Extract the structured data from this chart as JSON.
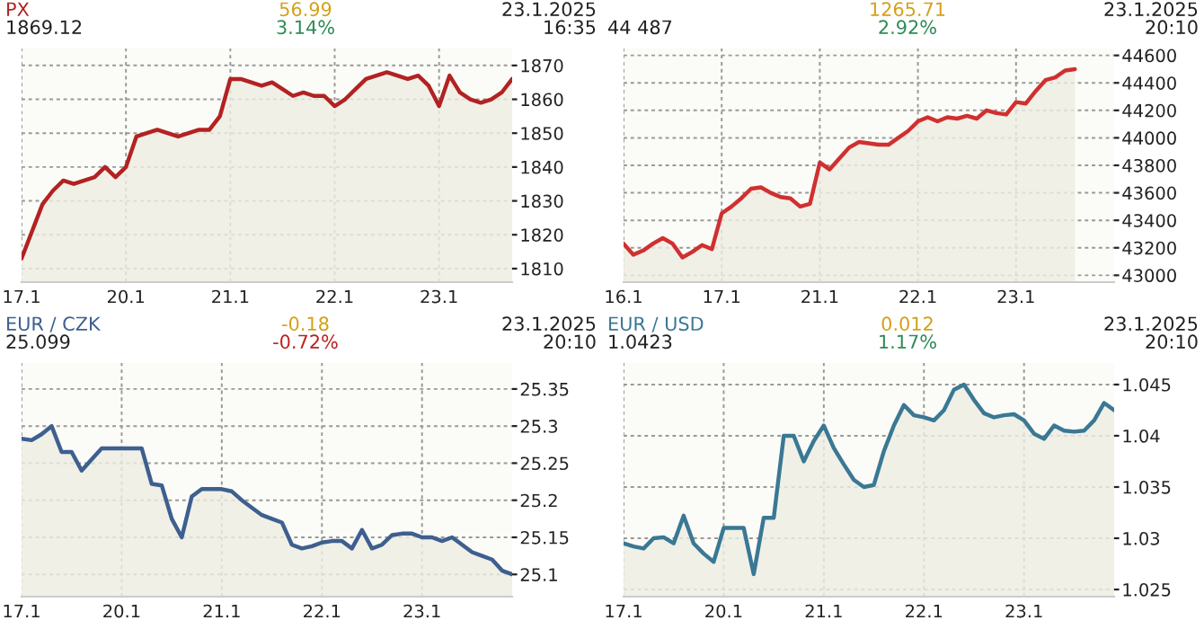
{
  "chart_data": [
    {
      "type": "area",
      "title": "PX",
      "subtitle": "1869.12",
      "annotations": [
        "56.99",
        "3.14%",
        "23.1.2025",
        "16:35"
      ],
      "categories": [
        "17.1",
        null,
        null,
        null,
        null,
        null,
        null,
        null,
        null,
        null,
        "20.1",
        null,
        null,
        null,
        null,
        null,
        null,
        null,
        null,
        null,
        "21.1",
        null,
        null,
        null,
        null,
        null,
        null,
        null,
        null,
        null,
        "22.1",
        null,
        null,
        null,
        null,
        null,
        null,
        null,
        null,
        null,
        "23.1",
        null,
        null,
        null,
        null,
        null,
        null,
        null
      ],
      "series": [
        {
          "color": "#b22222",
          "values": [
            1813,
            1821,
            1829,
            1833,
            1836,
            1835,
            1836,
            1837,
            1840,
            1837,
            1840,
            1849,
            1850,
            1851,
            1850,
            1849,
            1850,
            1851,
            1851,
            1855,
            1866,
            1866,
            1865,
            1864,
            1865,
            1863,
            1861,
            1862,
            1861,
            1861,
            1858,
            1860,
            1863,
            1866,
            1867,
            1868,
            1867,
            1866,
            1867,
            1864,
            1858,
            1867,
            1862,
            1860,
            1859,
            1860,
            1862,
            1866
          ]
        }
      ],
      "ylim": [
        1806,
        1875
      ],
      "yticks": [
        1810,
        1820,
        1830,
        1840,
        1850,
        1860,
        1870
      ],
      "grid": true
    },
    {
      "type": "area",
      "subtitle": "44 487",
      "annotations": [
        "1265.71",
        "2.92%",
        "23.1.2025",
        "20:10"
      ],
      "categories": [
        "16.1",
        null,
        null,
        null,
        null,
        null,
        null,
        null,
        null,
        null,
        "17.1",
        null,
        null,
        null,
        null,
        null,
        null,
        null,
        null,
        null,
        "21.1",
        null,
        null,
        null,
        null,
        null,
        null,
        null,
        null,
        null,
        "22.1",
        null,
        null,
        null,
        null,
        null,
        null,
        null,
        null,
        null,
        "23.1",
        null,
        null,
        null,
        null,
        null,
        null,
        null,
        null,
        null,
        null
      ],
      "series": [
        {
          "color": "#d03030",
          "values": [
            43230,
            43150,
            43180,
            43230,
            43270,
            43230,
            43130,
            43170,
            43220,
            43190,
            43450,
            43500,
            43560,
            43630,
            43640,
            43600,
            43570,
            43560,
            43500,
            43520,
            43820,
            43770,
            43850,
            43930,
            43970,
            43960,
            43950,
            43950,
            44000,
            44050,
            44120,
            44150,
            44120,
            44150,
            44140,
            44160,
            44140,
            44200,
            44180,
            44170,
            44260,
            44250,
            44340,
            44420,
            44440,
            44490,
            44500,
            null,
            null,
            null,
            null
          ]
        }
      ],
      "ylim": [
        42950,
        44650
      ],
      "yticks": [
        43000,
        43200,
        43400,
        43600,
        43800,
        44000,
        44200,
        44400,
        44600
      ],
      "grid": true
    },
    {
      "type": "area",
      "title": "EUR / CZK",
      "subtitle": "25.099",
      "annotations": [
        "-0.18",
        "-0.72%",
        "23.1.2025",
        "20:10"
      ],
      "categories": [
        "17.1",
        null,
        null,
        null,
        null,
        null,
        null,
        null,
        null,
        null,
        "20.1",
        null,
        null,
        null,
        null,
        null,
        null,
        null,
        null,
        null,
        "21.1",
        null,
        null,
        null,
        null,
        null,
        null,
        null,
        null,
        null,
        "22.1",
        null,
        null,
        null,
        null,
        null,
        null,
        null,
        null,
        null,
        "23.1",
        null,
        null,
        null,
        null,
        null,
        null,
        null,
        null,
        null
      ],
      "series": [
        {
          "color": "#3e5f8f",
          "values": [
            25.283,
            25.281,
            25.289,
            25.3,
            25.265,
            25.265,
            25.24,
            25.255,
            25.27,
            25.27,
            25.27,
            25.27,
            25.27,
            25.222,
            25.22,
            25.175,
            25.15,
            25.205,
            25.215,
            25.215,
            25.215,
            25.212,
            25.2,
            25.19,
            25.18,
            25.175,
            25.17,
            25.14,
            25.135,
            25.138,
            25.143,
            25.145,
            25.145,
            25.135,
            25.16,
            25.135,
            25.14,
            25.153,
            25.155,
            25.155,
            25.15,
            25.15,
            25.145,
            25.15,
            25.14,
            25.13,
            25.125,
            25.12,
            25.105,
            25.1
          ]
        }
      ],
      "ylim": [
        25.07,
        25.385
      ],
      "yticks": [
        25.1,
        25.15,
        25.2,
        25.25,
        25.3,
        25.35
      ],
      "grid": true
    },
    {
      "type": "area",
      "title": "EUR / USD",
      "subtitle": "1.0423",
      "annotations": [
        "0.012",
        "1.17%",
        "23.1.2025",
        "20:10"
      ],
      "categories": [
        "17.1",
        null,
        null,
        null,
        null,
        null,
        null,
        null,
        null,
        null,
        "20.1",
        null,
        null,
        null,
        null,
        null,
        null,
        null,
        null,
        null,
        "21.1",
        null,
        null,
        null,
        null,
        null,
        null,
        null,
        null,
        null,
        "22.1",
        null,
        null,
        null,
        null,
        null,
        null,
        null,
        null,
        null,
        "23.1",
        null,
        null,
        null,
        null,
        null,
        null,
        null,
        null,
        null
      ],
      "series": [
        {
          "color": "#3a7894",
          "values": [
            1.0295,
            1.0292,
            1.029,
            1.03,
            1.0301,
            1.0295,
            1.0322,
            1.0295,
            1.0285,
            1.0277,
            1.031,
            1.031,
            1.031,
            1.0265,
            1.032,
            1.032,
            1.04,
            1.04,
            1.0375,
            1.0395,
            1.041,
            1.0388,
            1.0372,
            1.0357,
            1.035,
            1.0352,
            1.0385,
            1.041,
            1.043,
            1.042,
            1.0418,
            1.0415,
            1.0425,
            1.0445,
            1.045,
            1.0435,
            1.0422,
            1.0418,
            1.042,
            1.0421,
            1.0415,
            1.0402,
            1.0397,
            1.041,
            1.0405,
            1.0404,
            1.0405,
            1.0415,
            1.0432,
            1.0425
          ]
        }
      ],
      "ylim": [
        1.0243,
        1.0471
      ],
      "yticks": [
        1.025,
        1.03,
        1.035,
        1.04,
        1.045
      ],
      "grid": true
    }
  ]
}
